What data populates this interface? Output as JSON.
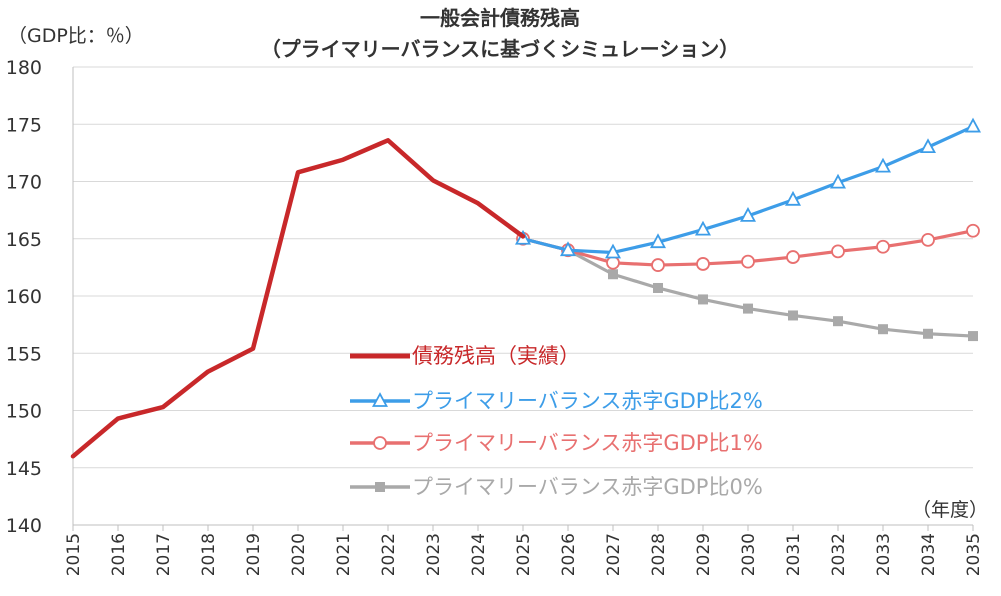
{
  "chart_data": {
    "type": "line",
    "title": "一般会計債務残高",
    "subtitle": "（プライマリーバランスに基づくシミュレーション）",
    "ylabel": "（GDP比：％）",
    "xlabel": "（年度）",
    "ylim": [
      140,
      180
    ],
    "yticks": [
      140,
      145,
      150,
      155,
      160,
      165,
      170,
      175,
      180
    ],
    "categories": [
      "2015",
      "2016",
      "2017",
      "2018",
      "2019",
      "2020",
      "2021",
      "2022",
      "2023",
      "2024",
      "2025",
      "2026",
      "2027",
      "2028",
      "2029",
      "2030",
      "2031",
      "2032",
      "2033",
      "2034",
      "2035"
    ],
    "grid": "horizontal",
    "legend_position": "center",
    "series": [
      {
        "name": "債務残高（実績）",
        "color": "#c8282a",
        "marker": "none",
        "x": [
          "2015",
          "2016",
          "2017",
          "2018",
          "2019",
          "2020",
          "2021",
          "2022",
          "2023",
          "2024",
          "2025"
        ],
        "values": [
          146.0,
          149.3,
          150.3,
          153.4,
          155.4,
          170.8,
          171.9,
          173.6,
          170.1,
          168.1,
          165.2
        ]
      },
      {
        "name": "プライマリーバランス赤字GDP比2%",
        "color": "#3d9de8",
        "marker": "triangle",
        "x": [
          "2025",
          "2026",
          "2027",
          "2028",
          "2029",
          "2030",
          "2031",
          "2032",
          "2033",
          "2034",
          "2035"
        ],
        "values": [
          165.0,
          164.0,
          163.8,
          164.7,
          165.8,
          167.0,
          168.4,
          169.9,
          171.3,
          173.0,
          174.8
        ]
      },
      {
        "name": "プライマリーバランス赤字GDP比1%",
        "color": "#e87070",
        "marker": "circle",
        "x": [
          "2025",
          "2026",
          "2027",
          "2028",
          "2029",
          "2030",
          "2031",
          "2032",
          "2033",
          "2034",
          "2035"
        ],
        "values": [
          165.0,
          164.0,
          162.9,
          162.7,
          162.8,
          163.0,
          163.4,
          163.9,
          164.3,
          164.9,
          165.7
        ]
      },
      {
        "name": "プライマリーバランス赤字GDP比0%",
        "color": "#a9a9a9",
        "marker": "square",
        "x": [
          "2025",
          "2026",
          "2027",
          "2028",
          "2029",
          "2030",
          "2031",
          "2032",
          "2033",
          "2034",
          "2035"
        ],
        "values": [
          165.0,
          164.0,
          161.9,
          160.7,
          159.7,
          158.9,
          158.3,
          157.8,
          157.1,
          156.7,
          156.5
        ]
      }
    ]
  }
}
